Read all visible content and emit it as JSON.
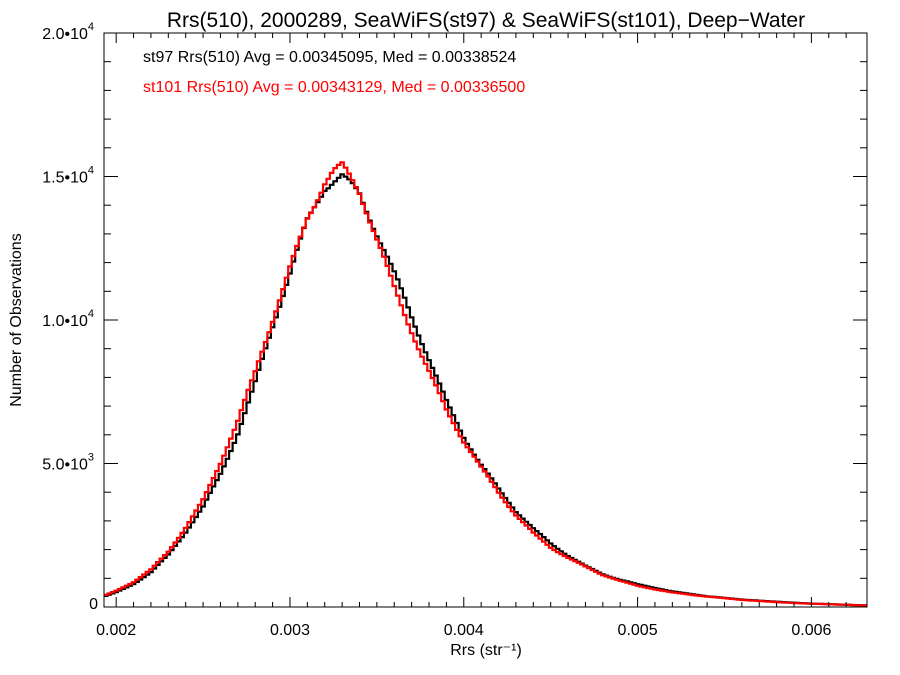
{
  "chart_data": {
    "type": "line",
    "title": "Rrs(510), 2000289, SeaWiFS(st97) & SeaWiFS(st101), Deep−Water",
    "xlabel": "Rrs (str⁻¹)",
    "ylabel": "Number of Observations",
    "xlim": [
      0.00193,
      0.00632
    ],
    "ylim": [
      0,
      20000
    ],
    "x_ticks": [
      {
        "value": 0.002,
        "label": "0.002"
      },
      {
        "value": 0.003,
        "label": "0.003"
      },
      {
        "value": 0.004,
        "label": "0.004"
      },
      {
        "value": 0.005,
        "label": "0.005"
      },
      {
        "value": 0.006,
        "label": "0.006"
      }
    ],
    "y_ticks": [
      {
        "value": 0,
        "mant": "0",
        "exp": ""
      },
      {
        "value": 5000,
        "mant": "5.0•1",
        "exp": "3"
      },
      {
        "value": 10000,
        "mant": "1.0•1",
        "exp": "4"
      },
      {
        "value": 15000,
        "mant": "1.5•1",
        "exp": "4"
      },
      {
        "value": 20000,
        "mant": "2.0•1",
        "exp": "4"
      }
    ],
    "annotations": [
      {
        "text": "st97 Rrs(510) Avg = 0.00345095, Med = 0.00338524",
        "color": "#000000"
      },
      {
        "text": "st101 Rrs(510) Avg = 0.00343129, Med = 0.00336500",
        "color": "#ff0000"
      }
    ],
    "step_style": "histogram",
    "series": [
      {
        "color": "#000000",
        "x": [
          0.0019,
          0.002,
          0.0021,
          0.0022,
          0.0023,
          0.0024,
          0.0025,
          0.0026,
          0.0027,
          0.0028,
          0.0029,
          0.003,
          0.0031,
          0.0032,
          0.00325,
          0.0033,
          0.00335,
          0.0034,
          0.0035,
          0.0036,
          0.0037,
          0.0038,
          0.0039,
          0.004,
          0.0041,
          0.0042,
          0.0043,
          0.0044,
          0.0045,
          0.0046,
          0.0047,
          0.0048,
          0.0049,
          0.005,
          0.0052,
          0.0054,
          0.0056,
          0.0058,
          0.006,
          0.0062,
          0.0063
        ],
        "y": [
          300,
          520,
          800,
          1200,
          1800,
          2600,
          3500,
          4700,
          6100,
          7800,
          9700,
          11500,
          13400,
          14700,
          15000,
          15200,
          14900,
          14500,
          13000,
          11500,
          10000,
          8600,
          7200,
          6000,
          5000,
          4100,
          3300,
          2700,
          2200,
          1800,
          1450,
          1150,
          950,
          780,
          540,
          380,
          260,
          180,
          120,
          80,
          60
        ]
      },
      {
        "color": "#ff0000",
        "x": [
          0.0019,
          0.002,
          0.0021,
          0.0022,
          0.0023,
          0.0024,
          0.0025,
          0.0026,
          0.0027,
          0.0028,
          0.0029,
          0.003,
          0.0031,
          0.0032,
          0.00325,
          0.0033,
          0.00335,
          0.0034,
          0.0035,
          0.0036,
          0.0037,
          0.0038,
          0.0039,
          0.004,
          0.0041,
          0.0042,
          0.0043,
          0.0044,
          0.0045,
          0.0046,
          0.0047,
          0.0048,
          0.0049,
          0.005,
          0.0052,
          0.0054,
          0.0056,
          0.0058,
          0.006,
          0.0062,
          0.0063
        ],
        "y": [
          320,
          560,
          860,
          1300,
          1950,
          2800,
          3750,
          5000,
          6400,
          8100,
          10000,
          11900,
          13700,
          14900,
          15200,
          15300,
          14800,
          14300,
          12700,
          11100,
          9700,
          8300,
          6900,
          5750,
          4800,
          3950,
          3200,
          2600,
          2100,
          1720,
          1400,
          1100,
          900,
          740,
          510,
          360,
          245,
          170,
          115,
          75,
          55
        ]
      }
    ]
  }
}
